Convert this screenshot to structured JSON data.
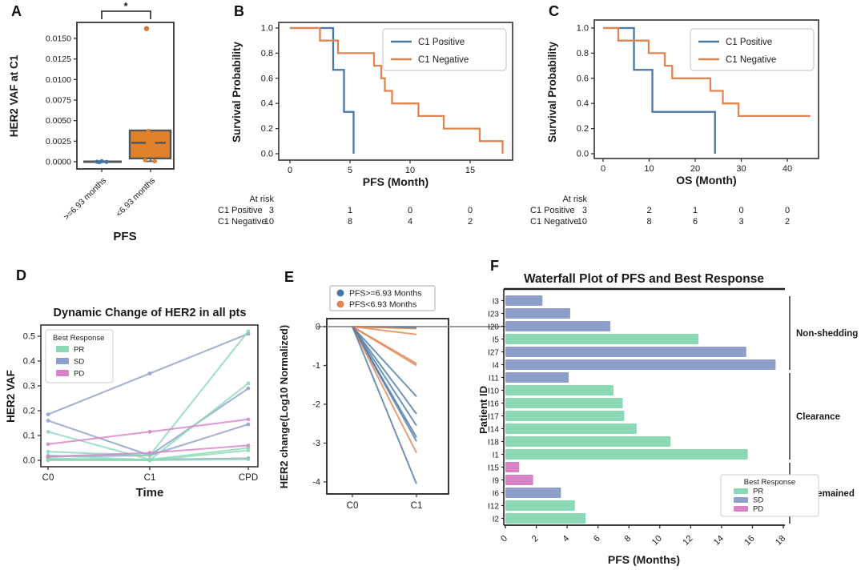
{
  "panel_letters": {
    "a": "A",
    "b": "B",
    "c": "C",
    "d": "D",
    "e": "E",
    "f": "F"
  },
  "colors": {
    "km_blue": "#4878A8",
    "km_orange": "#DE8552",
    "box_orange": "#E1812C",
    "dot_blue": "#3D72A8",
    "pr_green": "#8BD9B4",
    "sd_slate": "#8E9FCB",
    "pd_magenta": "#D783C8",
    "spine": "#333333",
    "refline": "#777777"
  },
  "chart_data": [
    {
      "panel": "A",
      "type": "box",
      "ylabel": "HER2 VAF at C1",
      "xlabel": "PFS",
      "categories": [
        ">=6.93 months",
        "<6.93 months"
      ],
      "yticks": [
        "0.0000",
        "0.0025",
        "0.0050",
        "0.0075",
        "0.0100",
        "0.0125",
        "0.0150"
      ],
      "significance": "*",
      "boxes": [
        {
          "label": ">=6.93 months",
          "group": "blue",
          "q1": 0.0,
          "median": 0.0,
          "q3": 0.0,
          "points": [
            0.0,
            0.0,
            0.0,
            0.0
          ],
          "outliers": []
        },
        {
          "label": "<6.93 months",
          "group": "orange",
          "q1": 0.0004,
          "median": 0.0023,
          "q3": 0.0038,
          "whisker_low": 5e-05,
          "points": [
            0.0038,
            0.0023,
            0.0002,
            5e-05
          ],
          "outliers": [
            0.0162
          ]
        }
      ]
    },
    {
      "panel": "B",
      "type": "km",
      "ylabel": "Survival Probability",
      "xlabel": "PFS (Month)",
      "xticks": [
        0,
        5,
        10,
        15
      ],
      "yticks": [
        "0.0",
        "0.2",
        "0.4",
        "0.6",
        "0.8",
        "1.0"
      ],
      "series": [
        {
          "name": "C1 Positive",
          "color_key": "km_blue",
          "steps": [
            [
              0,
              1.0
            ],
            [
              3.6,
              1.0
            ],
            [
              3.6,
              0.667
            ],
            [
              4.5,
              0.667
            ],
            [
              4.5,
              0.333
            ],
            [
              5.3,
              0.333
            ],
            [
              5.3,
              0.0
            ]
          ]
        },
        {
          "name": "C1 Negative",
          "color_key": "km_orange",
          "steps": [
            [
              0,
              1.0
            ],
            [
              2.5,
              1.0
            ],
            [
              2.5,
              0.9
            ],
            [
              4.0,
              0.9
            ],
            [
              4.0,
              0.8
            ],
            [
              7.0,
              0.8
            ],
            [
              7.0,
              0.7
            ],
            [
              7.6,
              0.7
            ],
            [
              7.6,
              0.6
            ],
            [
              7.9,
              0.6
            ],
            [
              7.9,
              0.5
            ],
            [
              8.5,
              0.5
            ],
            [
              8.5,
              0.4
            ],
            [
              10.7,
              0.4
            ],
            [
              10.7,
              0.3
            ],
            [
              12.8,
              0.3
            ],
            [
              12.8,
              0.2
            ],
            [
              15.8,
              0.2
            ],
            [
              15.8,
              0.1
            ],
            [
              17.7,
              0.1
            ],
            [
              17.7,
              0.0
            ]
          ]
        }
      ],
      "at_risk": {
        "header": "At risk",
        "rows": [
          {
            "name": "C1 Positive",
            "counts": [
              3,
              1,
              0,
              0
            ]
          },
          {
            "name": "C1 Negative",
            "counts": [
              10,
              8,
              4,
              2
            ]
          }
        ]
      }
    },
    {
      "panel": "C",
      "type": "km",
      "ylabel": "Survival Probability",
      "xlabel": "OS (Month)",
      "xticks": [
        0,
        10,
        20,
        30,
        40
      ],
      "yticks": [
        "0.0",
        "0.2",
        "0.4",
        "0.6",
        "0.8",
        "1.0"
      ],
      "series": [
        {
          "name": "C1 Positive",
          "color_key": "km_blue",
          "steps": [
            [
              0,
              1.0
            ],
            [
              6.7,
              1.0
            ],
            [
              6.7,
              0.667
            ],
            [
              10.7,
              0.667
            ],
            [
              10.7,
              0.333
            ],
            [
              24.3,
              0.333
            ],
            [
              24.3,
              0.0
            ]
          ]
        },
        {
          "name": "C1 Negative",
          "color_key": "km_orange",
          "steps": [
            [
              0,
              1.0
            ],
            [
              3.3,
              1.0
            ],
            [
              3.3,
              0.9
            ],
            [
              9.9,
              0.9
            ],
            [
              9.9,
              0.8
            ],
            [
              13.4,
              0.8
            ],
            [
              13.4,
              0.7
            ],
            [
              15.0,
              0.7
            ],
            [
              15.0,
              0.6
            ],
            [
              23.3,
              0.6
            ],
            [
              23.3,
              0.5
            ],
            [
              26.0,
              0.5
            ],
            [
              26.0,
              0.4
            ],
            [
              29.4,
              0.4
            ],
            [
              29.4,
              0.3
            ],
            [
              45.0,
              0.3
            ]
          ]
        }
      ],
      "at_risk": {
        "header": "At risk",
        "rows": [
          {
            "name": "C1 Positive",
            "counts": [
              3,
              2,
              1,
              0,
              0
            ]
          },
          {
            "name": "C1 Negative",
            "counts": [
              10,
              8,
              6,
              3,
              2
            ]
          }
        ]
      }
    },
    {
      "panel": "D",
      "type": "line",
      "title": "Dynamic Change of HER2 in all pts",
      "ylabel": "HER2 VAF",
      "xlabel": "Time",
      "categories": [
        "C0",
        "C1",
        "CPD"
      ],
      "yticks": [
        "0.0",
        "0.1",
        "0.2",
        "0.3",
        "0.4",
        "0.5"
      ],
      "legend_title": "Best Response",
      "legend": [
        {
          "name": "PR",
          "color_key": "pr_green"
        },
        {
          "name": "SD",
          "color_key": "sd_slate"
        },
        {
          "name": "PD",
          "color_key": "pd_magenta"
        }
      ],
      "series": [
        {
          "group": "SD",
          "values": [
            0.185,
            0.35,
            0.51
          ]
        },
        {
          "group": "SD",
          "values": [
            0.16,
            0.02,
            0.29
          ]
        },
        {
          "group": "SD",
          "values": [
            0.015,
            0.02,
            0.145
          ]
        },
        {
          "group": "SD",
          "values": [
            0.003,
            0.003,
            0.008
          ]
        },
        {
          "group": "PR",
          "values": [
            0.115,
            0.003,
            0.05
          ]
        },
        {
          "group": "PR",
          "values": [
            0.035,
            0.02,
            0.52
          ]
        },
        {
          "group": "PR",
          "values": [
            0.02,
            0.001,
            0.31
          ]
        },
        {
          "group": "PR",
          "values": [
            0.008,
            0.0,
            0.04
          ]
        },
        {
          "group": "PR",
          "values": [
            0.0,
            0.0,
            0.004
          ]
        },
        {
          "group": "PD",
          "values": [
            0.065,
            0.115,
            0.165
          ]
        },
        {
          "group": "PD",
          "values": [
            0.015,
            0.03,
            0.06
          ]
        }
      ]
    },
    {
      "panel": "E",
      "type": "slope",
      "ylabel": "HER2 change(Log10 Normalized)",
      "categories": [
        "C0",
        "C1"
      ],
      "yticks": [
        "0",
        "-1",
        "-2",
        "-3",
        "-4"
      ],
      "legend": [
        {
          "name": "PFS>=6.93 Months",
          "color_key": "km_blue"
        },
        {
          "name": "PFS<6.93 Months",
          "color_key": "km_orange"
        }
      ],
      "series": [
        {
          "group": "blue",
          "start": 0,
          "end": -0.02
        },
        {
          "group": "blue",
          "start": 0,
          "end": -0.04
        },
        {
          "group": "orange",
          "start": 0,
          "end": -0.05
        },
        {
          "group": "orange",
          "start": 0,
          "end": -0.2
        },
        {
          "group": "orange",
          "start": 0,
          "end": -0.95
        },
        {
          "group": "orange",
          "start": 0,
          "end": -1.0
        },
        {
          "group": "blue",
          "start": 0,
          "end": -1.8
        },
        {
          "group": "blue",
          "start": 0,
          "end": -2.25
        },
        {
          "group": "blue",
          "start": 0,
          "end": -2.55
        },
        {
          "group": "blue",
          "start": 0,
          "end": -2.85
        },
        {
          "group": "blue",
          "start": 0,
          "end": -2.95
        },
        {
          "group": "orange",
          "start": 0,
          "end": -3.25
        },
        {
          "group": "blue",
          "start": 0,
          "end": -4.05
        }
      ]
    },
    {
      "panel": "F",
      "type": "bar",
      "title": "Waterfall Plot of PFS and Best Response",
      "xlabel": "PFS (Months)",
      "ylabel": "Patient ID",
      "xticks": [
        0,
        2,
        4,
        6,
        8,
        10,
        12,
        14,
        16,
        18
      ],
      "legend_title": "Best Response",
      "legend": [
        {
          "name": "PR",
          "color_key": "pr_green"
        },
        {
          "name": "SD",
          "color_key": "sd_slate"
        },
        {
          "name": "PD",
          "color_key": "pd_magenta"
        }
      ],
      "groups": [
        {
          "name": "Non-shedding",
          "first": "I3",
          "last": "I4"
        },
        {
          "name": "Clearance",
          "first": "I11",
          "last": "I1"
        },
        {
          "name": "C1 Remained",
          "first": "I15",
          "last": "I2"
        }
      ],
      "bars": [
        {
          "id": "I3",
          "response": "SD",
          "pfs": 2.4,
          "group": "Non-shedding"
        },
        {
          "id": "I23",
          "response": "SD",
          "pfs": 4.2,
          "group": "Non-shedding"
        },
        {
          "id": "I20",
          "response": "SD",
          "pfs": 6.8,
          "group": "Non-shedding"
        },
        {
          "id": "I5",
          "response": "PR",
          "pfs": 12.5,
          "group": "Non-shedding"
        },
        {
          "id": "I27",
          "response": "SD",
          "pfs": 15.6,
          "group": "Non-shedding"
        },
        {
          "id": "I4",
          "response": "SD",
          "pfs": 17.5,
          "group": "Non-shedding"
        },
        {
          "id": "I11",
          "response": "SD",
          "pfs": 4.1,
          "group": "Clearance"
        },
        {
          "id": "I10",
          "response": "PR",
          "pfs": 7.0,
          "group": "Clearance"
        },
        {
          "id": "I16",
          "response": "PR",
          "pfs": 7.6,
          "group": "Clearance"
        },
        {
          "id": "I17",
          "response": "PR",
          "pfs": 7.7,
          "group": "Clearance"
        },
        {
          "id": "I14",
          "response": "PR",
          "pfs": 8.5,
          "group": "Clearance"
        },
        {
          "id": "I18",
          "response": "PR",
          "pfs": 10.7,
          "group": "Clearance"
        },
        {
          "id": "I1",
          "response": "PR",
          "pfs": 15.7,
          "group": "Clearance"
        },
        {
          "id": "I15",
          "response": "PD",
          "pfs": 0.9,
          "group": "C1 Remained"
        },
        {
          "id": "I9",
          "response": "PD",
          "pfs": 1.8,
          "group": "C1 Remained"
        },
        {
          "id": "I6",
          "response": "SD",
          "pfs": 3.6,
          "group": "C1 Remained"
        },
        {
          "id": "I12",
          "response": "PR",
          "pfs": 4.5,
          "group": "C1 Remained"
        },
        {
          "id": "I2",
          "response": "PR",
          "pfs": 5.2,
          "group": "C1 Remained"
        }
      ]
    }
  ]
}
